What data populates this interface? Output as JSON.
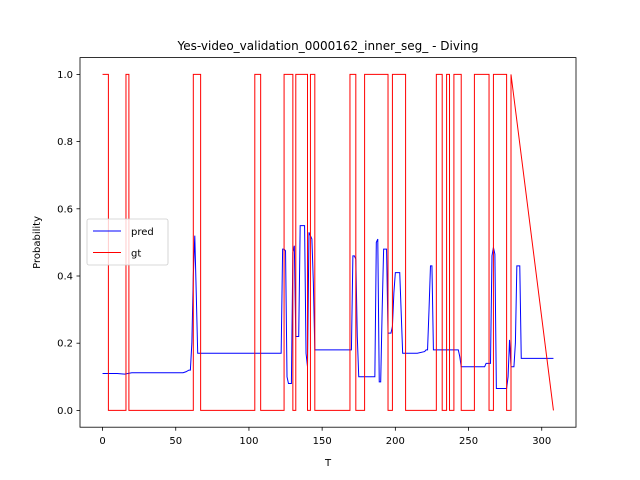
{
  "chart_data": {
    "type": "line",
    "title": "Yes-video_validation_0000162_inner_seg_ - Diving",
    "xlabel": "T",
    "ylabel": "Probability",
    "xlim": [
      -15.4,
      323.4
    ],
    "ylim": [
      -0.05,
      1.05
    ],
    "xticks": [
      0,
      50,
      100,
      150,
      200,
      250,
      300
    ],
    "yticks": [
      0.0,
      0.2,
      0.4,
      0.6,
      0.8,
      1.0
    ],
    "xtick_labels": [
      "0",
      "50",
      "100",
      "150",
      "200",
      "250",
      "300"
    ],
    "ytick_labels": [
      "0.0",
      "0.2",
      "0.4",
      "0.6",
      "0.8",
      "1.0"
    ],
    "grid": false,
    "legend": {
      "position": "center-left"
    },
    "series": [
      {
        "name": "pred",
        "color": "#0000ff",
        "x": [
          0,
          10,
          15,
          20,
          30,
          40,
          50,
          55,
          57,
          59,
          60,
          61,
          62,
          63,
          64,
          65,
          70,
          80,
          90,
          100,
          110,
          120,
          122,
          123,
          124,
          125,
          126,
          127,
          128,
          129,
          130,
          131,
          132,
          133,
          134,
          135,
          136,
          137,
          138,
          139,
          140,
          141,
          142,
          143,
          144,
          145,
          146,
          150,
          160,
          165,
          170,
          171,
          172,
          173,
          174,
          175,
          180,
          185,
          186,
          187,
          188,
          189,
          190,
          191,
          192,
          193,
          194,
          195,
          196,
          197,
          198,
          199,
          200,
          201,
          202,
          203,
          205,
          210,
          215,
          220,
          221,
          222,
          223,
          224,
          225,
          226,
          227,
          230,
          240,
          243,
          244,
          245,
          250,
          255,
          260,
          261,
          262,
          263,
          264,
          265,
          266,
          267,
          268,
          269,
          270,
          271,
          272,
          273,
          274,
          275,
          276,
          277,
          278,
          279,
          280,
          281,
          282,
          283,
          284,
          285,
          286,
          287,
          290,
          300,
          308
        ],
        "values": [
          0.11,
          0.11,
          0.108,
          0.112,
          0.112,
          0.112,
          0.112,
          0.112,
          0.115,
          0.12,
          0.12,
          0.2,
          0.4,
          0.52,
          0.35,
          0.17,
          0.17,
          0.17,
          0.17,
          0.17,
          0.17,
          0.17,
          0.17,
          0.48,
          0.48,
          0.475,
          0.1,
          0.08,
          0.08,
          0.08,
          0.47,
          0.49,
          0.22,
          0.22,
          0.22,
          0.55,
          0.55,
          0.55,
          0.55,
          0.17,
          0.13,
          0.53,
          0.52,
          0.51,
          0.38,
          0.18,
          0.18,
          0.18,
          0.18,
          0.18,
          0.18,
          0.46,
          0.46,
          0.45,
          0.22,
          0.1,
          0.1,
          0.1,
          0.1,
          0.5,
          0.51,
          0.085,
          0.085,
          0.3,
          0.48,
          0.48,
          0.48,
          0.23,
          0.23,
          0.23,
          0.25,
          0.35,
          0.41,
          0.41,
          0.41,
          0.41,
          0.17,
          0.17,
          0.17,
          0.175,
          0.18,
          0.18,
          0.3,
          0.43,
          0.43,
          0.18,
          0.18,
          0.18,
          0.18,
          0.18,
          0.16,
          0.13,
          0.13,
          0.13,
          0.13,
          0.13,
          0.14,
          0.14,
          0.14,
          0.14,
          0.46,
          0.485,
          0.465,
          0.065,
          0.065,
          0.065,
          0.065,
          0.065,
          0.065,
          0.065,
          0.065,
          0.1,
          0.21,
          0.13,
          0.13,
          0.13,
          0.2,
          0.43,
          0.43,
          0.43,
          0.155,
          0.155,
          0.155,
          0.155,
          0.155
        ]
      },
      {
        "name": "gt",
        "color": "#ff0000",
        "x": [
          0,
          2,
          2,
          4,
          4,
          16,
          16,
          18,
          18,
          62,
          62,
          67,
          67,
          104,
          104,
          108,
          108,
          124,
          124,
          130,
          130,
          132,
          132,
          140,
          140,
          142,
          142,
          145,
          145,
          169,
          169,
          173,
          173,
          179,
          179,
          195,
          195,
          198,
          198,
          207,
          207,
          228,
          228,
          232,
          232,
          235,
          235,
          237,
          237,
          240,
          240,
          245,
          245,
          254,
          254,
          264,
          264,
          267,
          267,
          276,
          276,
          279,
          279,
          308
        ],
        "values": [
          1,
          1,
          1,
          1,
          0,
          0,
          1,
          1,
          0,
          0,
          1,
          1,
          0,
          0,
          1,
          1,
          0,
          0,
          1,
          1,
          0,
          0,
          1,
          1,
          0,
          0,
          1,
          1,
          0,
          0,
          1,
          1,
          0,
          0,
          1,
          1,
          0,
          0,
          1,
          1,
          0,
          0,
          1,
          1,
          0,
          0,
          1,
          1,
          0,
          0,
          1,
          1,
          0,
          0,
          1,
          1,
          0,
          0,
          1,
          1,
          0,
          0,
          1,
          0
        ]
      }
    ]
  }
}
